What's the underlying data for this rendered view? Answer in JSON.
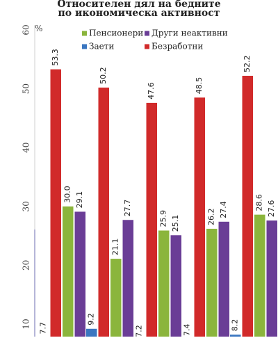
{
  "chart_data": {
    "type": "bar",
    "title_lines": [
      "Относителен дял на бедните",
      "по икономическа активност"
    ],
    "ylabel": "%",
    "ylim": [
      10,
      60
    ],
    "yticks": [
      10,
      20,
      30,
      40,
      50,
      60
    ],
    "grid": false,
    "legend_position": "top",
    "categories": [
      "",
      "",
      "",
      "",
      ""
    ],
    "series": [
      {
        "name": "Заети",
        "color": "#3a76c0",
        "values": [
          7.7,
          9.2,
          7.2,
          7.4,
          8.2
        ]
      },
      {
        "name": "Безработни",
        "color": "#d12a2a",
        "values": [
          53.3,
          50.2,
          47.6,
          48.5,
          52.2
        ]
      },
      {
        "name": "Пенсионери",
        "color": "#8bb53c",
        "values": [
          30.0,
          21.1,
          25.9,
          26.2,
          28.6
        ]
      },
      {
        "name": "Други неактивни",
        "color": "#6a3d96",
        "values": [
          29.1,
          27.7,
          25.1,
          27.4,
          27.6
        ]
      }
    ]
  }
}
